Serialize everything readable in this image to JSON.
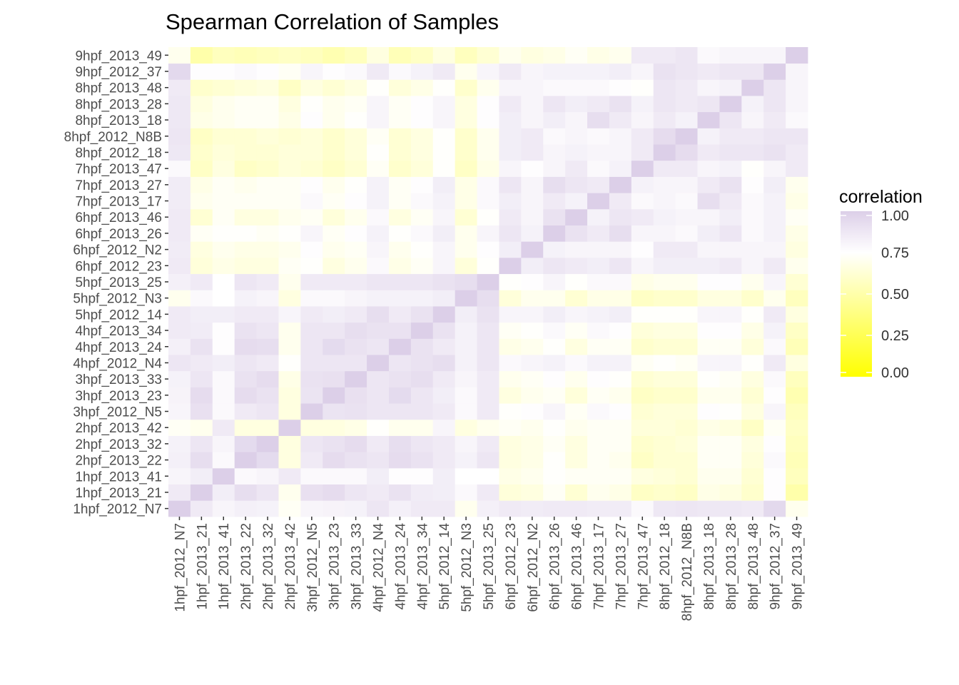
{
  "chart_data": {
    "type": "heatmap",
    "title": "Spearman Correlation of Samples",
    "xlabel": "",
    "ylabel": "",
    "samples": [
      "1hpf_2012_N7",
      "1hpf_2013_21",
      "1hpf_2013_41",
      "2hpf_2013_22",
      "2hpf_2013_32",
      "2hpf_2013_42",
      "3hpf_2012_N5",
      "3hpf_2013_23",
      "3hpf_2013_33",
      "4hpf_2012_N4",
      "4hpf_2013_24",
      "4hpf_2013_34",
      "5hpf_2012_14",
      "5hpf_2012_N3",
      "5hpf_2013_25",
      "6hpf_2012_23",
      "6hpf_2012_N2",
      "6hpf_2013_26",
      "6hpf_2013_46",
      "7hpf_2013_17",
      "7hpf_2013_27",
      "7hpf_2013_47",
      "8hpf_2012_18",
      "8hpf_2012_N8B",
      "8hpf_2013_18",
      "8hpf_2013_28",
      "8hpf_2013_48",
      "9hpf_2012_37",
      "9hpf_2013_49"
    ],
    "values": [
      [
        1.0,
        0.86,
        0.8,
        0.83,
        0.82,
        0.72,
        0.8,
        0.81,
        0.82,
        0.88,
        0.83,
        0.86,
        0.86,
        0.7,
        0.83,
        0.86,
        0.85,
        0.86,
        0.86,
        0.85,
        0.85,
        0.78,
        0.87,
        0.88,
        0.87,
        0.87,
        0.86,
        0.95,
        0.7
      ],
      [
        0.86,
        1.0,
        0.84,
        0.92,
        0.88,
        0.7,
        0.91,
        0.93,
        0.88,
        0.86,
        0.9,
        0.85,
        0.84,
        0.78,
        0.86,
        0.64,
        0.66,
        0.72,
        0.62,
        0.7,
        0.68,
        0.58,
        0.6,
        0.58,
        0.68,
        0.66,
        0.6,
        0.76,
        0.5
      ],
      [
        0.8,
        0.84,
        1.0,
        0.78,
        0.8,
        0.86,
        0.78,
        0.78,
        0.78,
        0.84,
        0.76,
        0.76,
        0.84,
        0.75,
        0.75,
        0.68,
        0.7,
        0.74,
        0.72,
        0.72,
        0.72,
        0.66,
        0.64,
        0.62,
        0.7,
        0.7,
        0.62,
        0.76,
        0.56
      ],
      [
        0.83,
        0.92,
        0.78,
        1.0,
        0.94,
        0.66,
        0.86,
        0.93,
        0.9,
        0.88,
        0.93,
        0.9,
        0.86,
        0.82,
        0.88,
        0.66,
        0.68,
        0.74,
        0.66,
        0.72,
        0.7,
        0.58,
        0.62,
        0.62,
        0.72,
        0.72,
        0.64,
        0.78,
        0.54
      ],
      [
        0.82,
        0.88,
        0.8,
        0.94,
        1.0,
        0.66,
        0.88,
        0.9,
        0.93,
        0.86,
        0.92,
        0.88,
        0.86,
        0.8,
        0.86,
        0.66,
        0.68,
        0.72,
        0.66,
        0.72,
        0.72,
        0.6,
        0.62,
        0.64,
        0.72,
        0.72,
        0.66,
        0.76,
        0.56
      ],
      [
        0.72,
        0.7,
        0.86,
        0.66,
        0.66,
        1.0,
        0.66,
        0.66,
        0.68,
        0.74,
        0.7,
        0.7,
        0.8,
        0.66,
        0.7,
        0.72,
        0.7,
        0.74,
        0.7,
        0.72,
        0.72,
        0.64,
        0.64,
        0.62,
        0.68,
        0.66,
        0.58,
        0.72,
        0.58
      ],
      [
        0.8,
        0.91,
        0.78,
        0.86,
        0.88,
        0.66,
        1.0,
        0.89,
        0.9,
        0.88,
        0.88,
        0.88,
        0.86,
        0.78,
        0.86,
        0.74,
        0.76,
        0.8,
        0.72,
        0.78,
        0.76,
        0.62,
        0.64,
        0.64,
        0.76,
        0.74,
        0.66,
        0.8,
        0.56
      ],
      [
        0.81,
        0.93,
        0.78,
        0.93,
        0.9,
        0.66,
        0.89,
        1.0,
        0.91,
        0.88,
        0.94,
        0.88,
        0.84,
        0.78,
        0.86,
        0.66,
        0.7,
        0.72,
        0.64,
        0.72,
        0.7,
        0.58,
        0.6,
        0.6,
        0.7,
        0.7,
        0.62,
        0.76,
        0.52
      ],
      [
        0.82,
        0.88,
        0.78,
        0.9,
        0.93,
        0.68,
        0.9,
        0.91,
        1.0,
        0.88,
        0.9,
        0.92,
        0.86,
        0.8,
        0.86,
        0.7,
        0.72,
        0.76,
        0.7,
        0.76,
        0.74,
        0.62,
        0.64,
        0.64,
        0.74,
        0.72,
        0.66,
        0.78,
        0.56
      ],
      [
        0.88,
        0.86,
        0.84,
        0.88,
        0.86,
        0.74,
        0.88,
        0.88,
        0.88,
        1.0,
        0.88,
        0.9,
        0.92,
        0.82,
        0.88,
        0.78,
        0.8,
        0.82,
        0.78,
        0.82,
        0.82,
        0.72,
        0.74,
        0.72,
        0.8,
        0.8,
        0.74,
        0.86,
        0.66
      ],
      [
        0.83,
        0.9,
        0.76,
        0.93,
        0.92,
        0.7,
        0.88,
        0.94,
        0.9,
        0.88,
        1.0,
        0.9,
        0.86,
        0.82,
        0.88,
        0.68,
        0.7,
        0.74,
        0.66,
        0.72,
        0.72,
        0.6,
        0.62,
        0.62,
        0.72,
        0.72,
        0.64,
        0.78,
        0.54
      ],
      [
        0.86,
        0.85,
        0.76,
        0.9,
        0.88,
        0.7,
        0.88,
        0.88,
        0.92,
        0.9,
        0.9,
        1.0,
        0.9,
        0.82,
        0.88,
        0.72,
        0.74,
        0.78,
        0.72,
        0.78,
        0.76,
        0.64,
        0.66,
        0.66,
        0.76,
        0.76,
        0.68,
        0.82,
        0.58
      ],
      [
        0.86,
        0.84,
        0.84,
        0.86,
        0.86,
        0.8,
        0.86,
        0.84,
        0.86,
        0.92,
        0.86,
        0.9,
        1.0,
        0.84,
        0.9,
        0.8,
        0.8,
        0.84,
        0.8,
        0.82,
        0.84,
        0.74,
        0.74,
        0.74,
        0.8,
        0.8,
        0.74,
        0.86,
        0.66
      ],
      [
        0.7,
        0.78,
        0.75,
        0.82,
        0.8,
        0.66,
        0.78,
        0.78,
        0.8,
        0.82,
        0.82,
        0.82,
        0.84,
        1.0,
        0.92,
        0.64,
        0.7,
        0.7,
        0.62,
        0.68,
        0.68,
        0.58,
        0.6,
        0.6,
        0.66,
        0.66,
        0.6,
        0.7,
        0.56
      ],
      [
        0.83,
        0.86,
        0.75,
        0.88,
        0.86,
        0.7,
        0.86,
        0.86,
        0.86,
        0.88,
        0.88,
        0.88,
        0.9,
        0.92,
        1.0,
        0.74,
        0.76,
        0.8,
        0.74,
        0.78,
        0.78,
        0.68,
        0.7,
        0.7,
        0.76,
        0.76,
        0.7,
        0.8,
        0.62
      ],
      [
        0.86,
        0.64,
        0.68,
        0.66,
        0.66,
        0.72,
        0.74,
        0.66,
        0.7,
        0.78,
        0.68,
        0.72,
        0.8,
        0.64,
        0.74,
        1.0,
        0.84,
        0.88,
        0.86,
        0.84,
        0.88,
        0.8,
        0.84,
        0.84,
        0.84,
        0.86,
        0.8,
        0.86,
        0.7
      ],
      [
        0.85,
        0.66,
        0.7,
        0.68,
        0.68,
        0.7,
        0.76,
        0.7,
        0.72,
        0.8,
        0.7,
        0.74,
        0.8,
        0.7,
        0.76,
        0.84,
        1.0,
        0.82,
        0.8,
        0.8,
        0.8,
        0.76,
        0.86,
        0.86,
        0.8,
        0.8,
        0.8,
        0.8,
        0.66
      ],
      [
        0.86,
        0.72,
        0.74,
        0.74,
        0.72,
        0.74,
        0.8,
        0.72,
        0.76,
        0.82,
        0.74,
        0.78,
        0.84,
        0.7,
        0.8,
        0.88,
        0.82,
        1.0,
        0.9,
        0.86,
        0.92,
        0.8,
        0.8,
        0.78,
        0.84,
        0.88,
        0.78,
        0.82,
        0.68
      ],
      [
        0.86,
        0.62,
        0.72,
        0.66,
        0.66,
        0.7,
        0.72,
        0.64,
        0.7,
        0.78,
        0.66,
        0.72,
        0.8,
        0.62,
        0.74,
        0.86,
        0.8,
        0.9,
        1.0,
        0.82,
        0.88,
        0.86,
        0.82,
        0.8,
        0.8,
        0.84,
        0.78,
        0.82,
        0.72
      ],
      [
        0.85,
        0.7,
        0.72,
        0.72,
        0.72,
        0.72,
        0.78,
        0.72,
        0.76,
        0.82,
        0.72,
        0.78,
        0.82,
        0.68,
        0.78,
        0.84,
        0.8,
        0.86,
        0.82,
        1.0,
        0.86,
        0.78,
        0.8,
        0.78,
        0.92,
        0.86,
        0.78,
        0.82,
        0.68
      ],
      [
        0.85,
        0.68,
        0.72,
        0.7,
        0.72,
        0.72,
        0.76,
        0.7,
        0.74,
        0.82,
        0.72,
        0.76,
        0.84,
        0.68,
        0.78,
        0.88,
        0.8,
        0.92,
        0.88,
        0.86,
        1.0,
        0.82,
        0.8,
        0.8,
        0.86,
        0.9,
        0.76,
        0.84,
        0.7
      ],
      [
        0.78,
        0.58,
        0.66,
        0.58,
        0.6,
        0.64,
        0.62,
        0.58,
        0.62,
        0.72,
        0.6,
        0.64,
        0.74,
        0.58,
        0.68,
        0.8,
        0.76,
        0.8,
        0.86,
        0.78,
        0.82,
        1.0,
        0.86,
        0.86,
        0.8,
        0.82,
        0.74,
        0.8,
        0.86
      ],
      [
        0.87,
        0.6,
        0.64,
        0.62,
        0.62,
        0.64,
        0.64,
        0.6,
        0.64,
        0.74,
        0.62,
        0.66,
        0.74,
        0.6,
        0.7,
        0.84,
        0.86,
        0.8,
        0.82,
        0.8,
        0.8,
        0.86,
        1.0,
        0.93,
        0.86,
        0.88,
        0.88,
        0.9,
        0.86
      ],
      [
        0.88,
        0.58,
        0.62,
        0.62,
        0.64,
        0.62,
        0.64,
        0.6,
        0.64,
        0.72,
        0.62,
        0.66,
        0.74,
        0.6,
        0.7,
        0.84,
        0.86,
        0.78,
        0.8,
        0.78,
        0.8,
        0.86,
        0.93,
        1.0,
        0.82,
        0.86,
        0.86,
        0.88,
        0.88
      ],
      [
        0.87,
        0.68,
        0.7,
        0.72,
        0.72,
        0.68,
        0.76,
        0.7,
        0.74,
        0.8,
        0.72,
        0.76,
        0.8,
        0.66,
        0.76,
        0.84,
        0.8,
        0.84,
        0.8,
        0.92,
        0.86,
        0.8,
        0.86,
        0.82,
        1.0,
        0.88,
        0.8,
        0.86,
        0.78
      ],
      [
        0.87,
        0.66,
        0.7,
        0.72,
        0.72,
        0.66,
        0.74,
        0.7,
        0.72,
        0.8,
        0.72,
        0.76,
        0.8,
        0.66,
        0.76,
        0.86,
        0.8,
        0.88,
        0.84,
        0.86,
        0.9,
        0.82,
        0.88,
        0.86,
        0.88,
        1.0,
        0.82,
        0.88,
        0.8
      ],
      [
        0.86,
        0.6,
        0.62,
        0.64,
        0.66,
        0.58,
        0.66,
        0.62,
        0.66,
        0.74,
        0.64,
        0.68,
        0.74,
        0.6,
        0.7,
        0.8,
        0.8,
        0.78,
        0.78,
        0.78,
        0.76,
        0.74,
        0.88,
        0.86,
        0.8,
        0.82,
        1.0,
        0.88,
        0.8
      ],
      [
        0.95,
        0.76,
        0.76,
        0.78,
        0.76,
        0.72,
        0.8,
        0.76,
        0.78,
        0.86,
        0.78,
        0.82,
        0.86,
        0.7,
        0.8,
        0.86,
        0.8,
        0.82,
        0.82,
        0.82,
        0.84,
        0.8,
        0.9,
        0.88,
        0.86,
        0.88,
        0.88,
        1.0,
        0.8
      ],
      [
        0.7,
        0.5,
        0.56,
        0.54,
        0.56,
        0.58,
        0.56,
        0.52,
        0.56,
        0.66,
        0.54,
        0.58,
        0.66,
        0.56,
        0.62,
        0.7,
        0.66,
        0.68,
        0.72,
        0.68,
        0.7,
        0.86,
        0.86,
        0.88,
        0.78,
        0.8,
        0.8,
        0.8,
        1.0
      ]
    ],
    "colorscale": {
      "low": "#FFFF00",
      "mid": "#FFFFFF",
      "high": "#DCCFE8",
      "midpoint": 0.75
    },
    "legend": {
      "title": "correlation",
      "ticks": [
        "1.00",
        "0.75",
        "0.50",
        "0.25",
        "0.00"
      ],
      "tick_values": [
        1.0,
        0.75,
        0.5,
        0.25,
        0.0
      ],
      "placement": "right"
    },
    "zlim": [
      0,
      1
    ],
    "grid": true,
    "panel_background": "#EBEBEB"
  }
}
